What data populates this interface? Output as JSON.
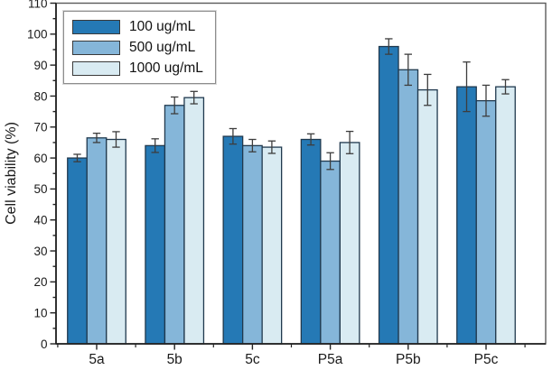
{
  "chart_data": {
    "type": "bar",
    "title": "",
    "xlabel": "",
    "ylabel": "Cell viability (%)",
    "ylim": [
      0,
      110
    ],
    "ytick_step": 10,
    "ytick_minor_step": 5,
    "yticks": [
      0,
      10,
      20,
      30,
      40,
      50,
      60,
      70,
      80,
      90,
      100,
      110
    ],
    "categories": [
      "5a",
      "5b",
      "5c",
      "P5a",
      "P5b",
      "P5c"
    ],
    "series": [
      {
        "name": "100 ug/mL",
        "color": "#2579b5",
        "values": [
          60,
          64,
          67,
          66,
          96,
          83
        ],
        "errors": [
          1.2,
          2.2,
          2.5,
          1.8,
          2.5,
          8
        ]
      },
      {
        "name": "500 ug/mL",
        "color": "#85b6d9",
        "values": [
          66.5,
          77,
          64,
          59,
          88.5,
          78.5
        ],
        "errors": [
          1.5,
          2.7,
          2,
          2.7,
          5,
          5
        ]
      },
      {
        "name": "1000 ug/mL",
        "color": "#d9ebf2",
        "values": [
          66,
          79.5,
          63.5,
          65,
          82,
          83
        ],
        "errors": [
          2.5,
          2,
          2,
          3.6,
          5,
          2.3
        ]
      }
    ],
    "legend_position": "top-left",
    "grid": false
  },
  "colors": {
    "bar_stroke": "#20394e",
    "error_bar": "#3d3d3d",
    "axis": "#222222",
    "frame": "#5a5a5a",
    "text": "#1a1a1a",
    "background": "#ffffff"
  }
}
